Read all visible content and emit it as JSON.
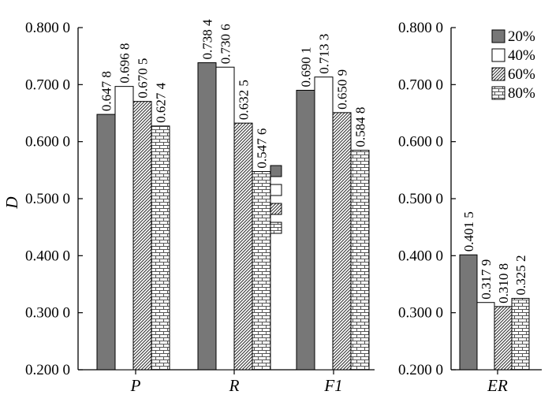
{
  "chart_data": [
    {
      "type": "bar",
      "categories": [
        "P",
        "R",
        "F1"
      ],
      "ylabel": "D",
      "ylim": [
        0.2,
        0.8
      ],
      "y_ticks": [
        "0.200 0",
        "0.300 0",
        "0.400 0",
        "0.500 0",
        "0.600 0",
        "0.700 0",
        "0.800 0"
      ],
      "series": [
        {
          "name": "20%",
          "values": [
            0.6478,
            0.7384,
            0.6901
          ],
          "labels": [
            "0.647 8",
            "0.738 4",
            "0.690 1"
          ]
        },
        {
          "name": "40%",
          "values": [
            0.6968,
            0.7306,
            0.7133
          ],
          "labels": [
            "0.696 8",
            "0.730 6",
            "0.713 3"
          ]
        },
        {
          "name": "60%",
          "values": [
            0.6705,
            0.6325,
            0.6509
          ],
          "labels": [
            "0.670 5",
            "0.632 5",
            "0.650 9"
          ]
        },
        {
          "name": "80%",
          "values": [
            0.6274,
            0.5476,
            0.5848
          ],
          "labels": [
            "0.627 4",
            "0.547 6",
            "0.584 8"
          ]
        }
      ]
    },
    {
      "type": "bar",
      "categories": [
        "ER"
      ],
      "ylim": [
        0.2,
        0.8
      ],
      "y_ticks": [
        "0.200 0",
        "0.300 0",
        "0.400 0",
        "0.500 0",
        "0.600 0",
        "0.700 0",
        "0.800 0"
      ],
      "series": [
        {
          "name": "20%",
          "values": [
            0.4015
          ],
          "labels": [
            "0.401 5"
          ]
        },
        {
          "name": "40%",
          "values": [
            0.3179
          ],
          "labels": [
            "0.317 9"
          ]
        },
        {
          "name": "60%",
          "values": [
            0.3108
          ],
          "labels": [
            "0.310 8"
          ]
        },
        {
          "name": "80%",
          "values": [
            0.3252
          ],
          "labels": [
            "0.325 2"
          ]
        }
      ]
    }
  ],
  "legend": [
    "20%",
    "40%",
    "60%",
    "80%"
  ],
  "styles": {
    "series_fills": [
      "#777777",
      "#ffffff",
      "hatch",
      "brick"
    ],
    "axis_color": "#000000"
  }
}
